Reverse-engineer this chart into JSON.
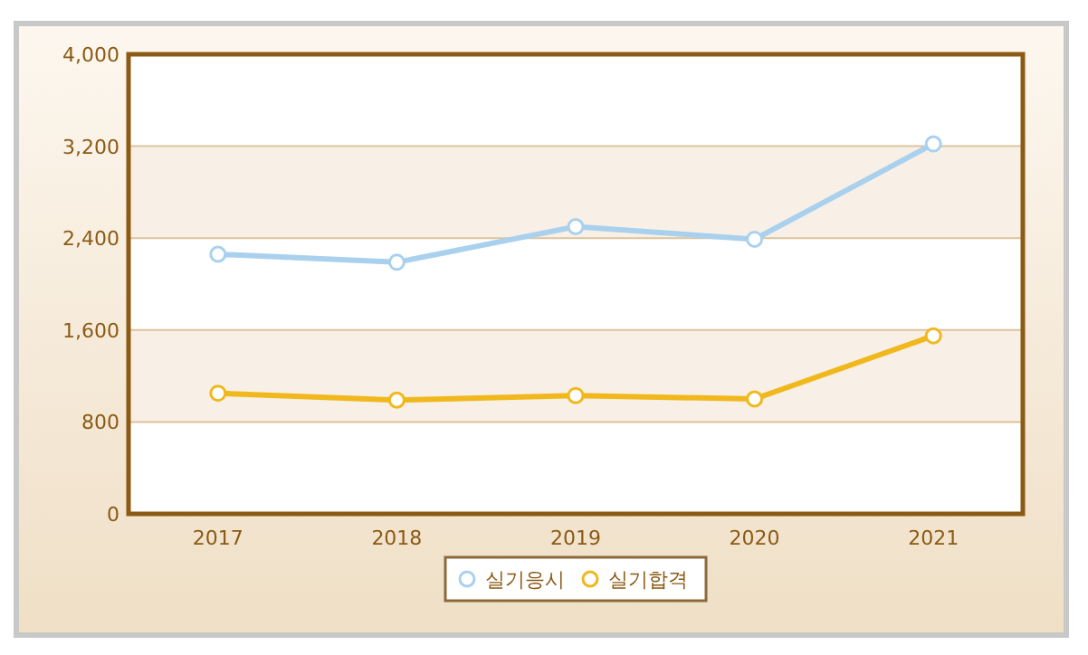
{
  "chart_data": {
    "type": "line",
    "categories": [
      "2017",
      "2018",
      "2019",
      "2020",
      "2021"
    ],
    "series": [
      {
        "name": "실기응시",
        "color": "#a9d1ee",
        "values": [
          2260,
          2190,
          2500,
          2390,
          3220
        ]
      },
      {
        "name": "실기합격",
        "color": "#f0b81c",
        "values": [
          1050,
          990,
          1030,
          1000,
          1550
        ]
      }
    ],
    "ylim": [
      0,
      4000
    ],
    "yticks": [
      {
        "value": 0,
        "label": "0"
      },
      {
        "value": 800,
        "label": "800"
      },
      {
        "value": 1600,
        "label": "1,600"
      },
      {
        "value": 2400,
        "label": "2,400"
      },
      {
        "value": 3200,
        "label": "3,200"
      },
      {
        "value": 4000,
        "label": "4,000"
      }
    ],
    "grid": "y",
    "legend": "bottom",
    "marker": "circle",
    "line_style": "solid"
  }
}
